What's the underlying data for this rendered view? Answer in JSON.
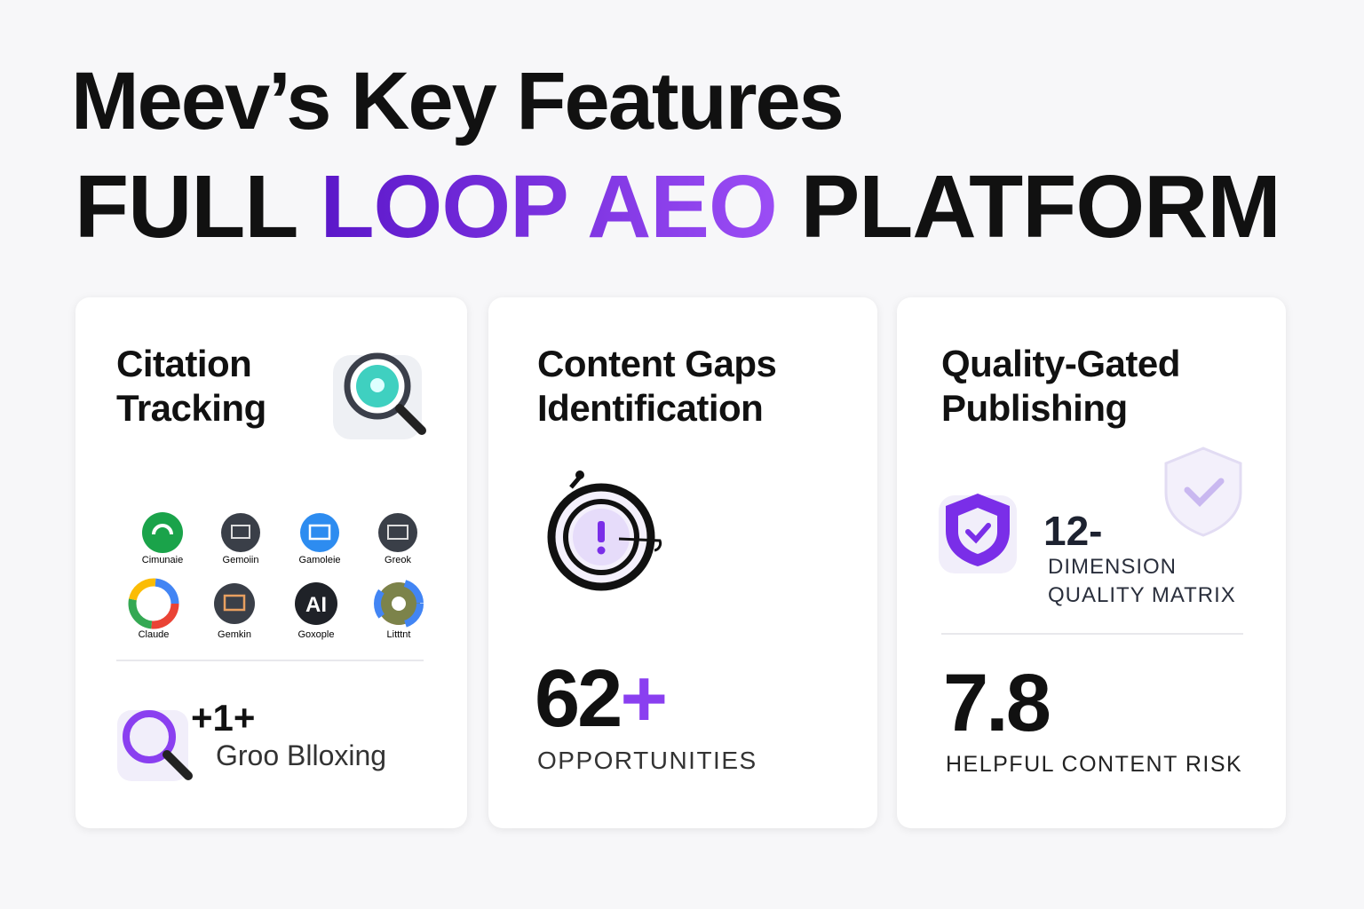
{
  "header": {
    "title": "Meev’s Key Features",
    "subtitle_start": "FULL",
    "subtitle_accent": "LOOP AEO",
    "subtitle_end": "PLATFORM"
  },
  "cards": [
    {
      "title_lines": [
        "Citation",
        "Tracking"
      ],
      "logos": [
        "Cimunaie",
        "Gemoiin",
        "Gamoleie",
        "Greok",
        "Claude",
        "Gemkin",
        "Goxople",
        "Litttnt"
      ],
      "stat": "+1+",
      "stat_label": "Groo Blloxing"
    },
    {
      "title_lines": [
        "Content Gaps",
        "Identification"
      ],
      "stat": "62",
      "stat_suffix": "+",
      "stat_label": "OPPORTUNITIES"
    },
    {
      "title_lines": [
        "Quality-Gated",
        "Publishing"
      ],
      "badge_stat": "12-",
      "badge_label_lines": [
        "DIMENSION",
        "QUALITY MATRIX"
      ],
      "stat": "7.8",
      "stat_label": "HELPFUL CONTENT RISK"
    }
  ]
}
